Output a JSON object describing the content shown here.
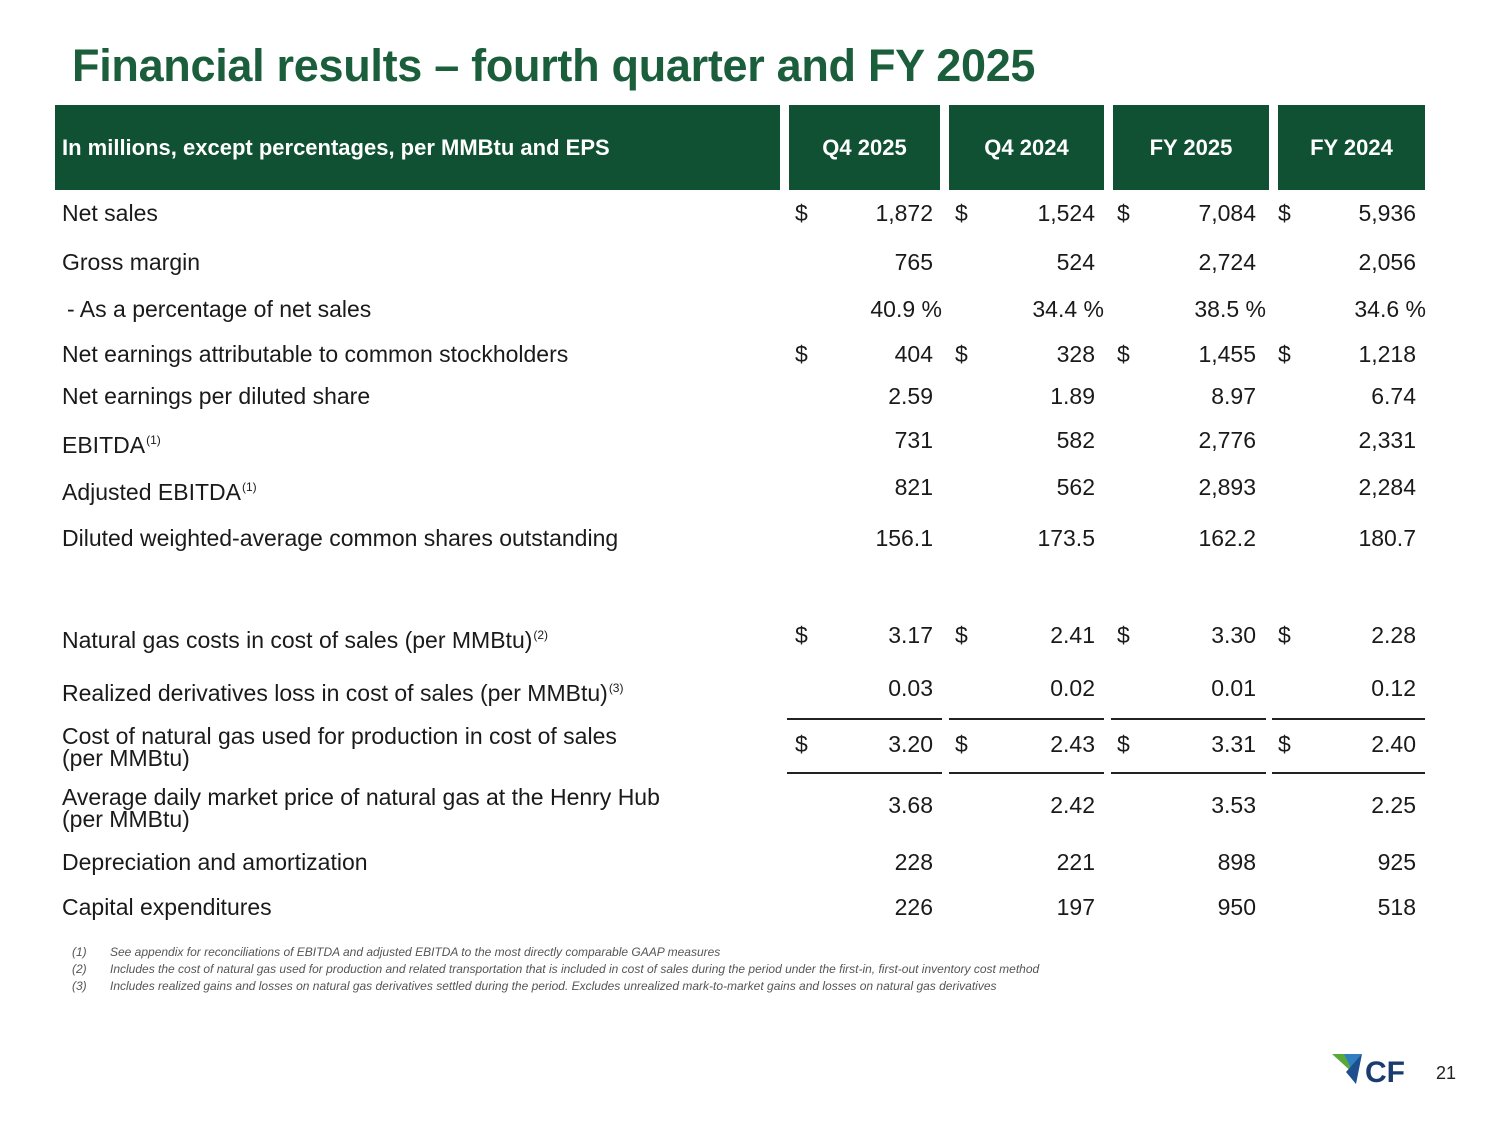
{
  "title": "Financial results – fourth quarter and FY 2025",
  "table": {
    "columns": [
      "In millions, except percentages, per MMBtu and EPS",
      "Q4 2025",
      "Q4 2024",
      "FY 2025",
      "FY 2024"
    ],
    "rows": [
      {
        "label": "Net sales",
        "sup": "",
        "dollar": true,
        "values": [
          "1,872",
          "1,524",
          "7,084",
          "5,936"
        ]
      },
      {
        "label": "Gross margin",
        "sup": "",
        "dollar": false,
        "values": [
          "765",
          "524",
          "2,724",
          "2,056"
        ]
      },
      {
        "label": "- As a percentage of net sales",
        "sup": "",
        "dollar": false,
        "values": [
          "40.9 %",
          "34.4 %",
          "38.5 %",
          "34.6 %"
        ]
      },
      {
        "label": "Net earnings attributable to common stockholders",
        "sup": "",
        "dollar": true,
        "values": [
          "404",
          "328",
          "1,455",
          "1,218"
        ]
      },
      {
        "label": "Net earnings per diluted share",
        "sup": "",
        "dollar": false,
        "values": [
          "2.59",
          "1.89",
          "8.97",
          "6.74"
        ]
      },
      {
        "label": "EBITDA",
        "sup": "(1)",
        "dollar": false,
        "values": [
          "731",
          "582",
          "2,776",
          "2,331"
        ]
      },
      {
        "label": "Adjusted EBITDA",
        "sup": "(1)",
        "dollar": false,
        "values": [
          "821",
          "562",
          "2,893",
          "2,284"
        ]
      },
      {
        "label": "Diluted weighted-average common shares outstanding",
        "sup": "",
        "dollar": false,
        "values": [
          "156.1",
          "173.5",
          "162.2",
          "180.7"
        ]
      },
      {
        "label": "Natural gas costs in cost of sales (per MMBtu)",
        "sup": "(2)",
        "dollar": true,
        "values": [
          "3.17",
          "2.41",
          "3.30",
          "2.28"
        ]
      },
      {
        "label": "Realized derivatives loss in cost of sales (per MMBtu)",
        "sup": "(3)",
        "dollar": false,
        "values": [
          "0.03",
          "0.02",
          "0.01",
          "0.12"
        ]
      },
      {
        "label": "Cost of natural gas used for production in cost of sales",
        "label2": "(per MMBtu)",
        "sup": "",
        "dollar": true,
        "values": [
          "3.20",
          "2.43",
          "3.31",
          "2.40"
        ]
      },
      {
        "label": "Average daily market price of natural gas at the Henry Hub",
        "label2": "(per MMBtu)",
        "sup": "",
        "dollar": false,
        "values": [
          "3.68",
          "2.42",
          "3.53",
          "2.25"
        ]
      },
      {
        "label": "Depreciation and amortization",
        "sup": "",
        "dollar": false,
        "values": [
          "228",
          "221",
          "898",
          "925"
        ]
      },
      {
        "label": "Capital expenditures",
        "sup": "",
        "dollar": false,
        "values": [
          "226",
          "197",
          "950",
          "518"
        ]
      }
    ]
  },
  "footnotes": [
    {
      "num": "(1)",
      "text": "See appendix for reconciliations of EBITDA and adjusted EBITDA to the most directly comparable GAAP measures"
    },
    {
      "num": "(2)",
      "text": "Includes the cost of natural gas used for production and related transportation that is included in cost of sales during the period under the first-in, first-out inventory cost method"
    },
    {
      "num": "(3)",
      "text": "Includes realized gains and losses on natural gas derivatives settled during the period. Excludes unrealized mark-to-market gains and losses on natural gas derivatives"
    }
  ],
  "logo": {
    "text": "CF",
    "colors": {
      "green": "#5aa83a",
      "blue": "#1d4f8f",
      "navy": "#1a3b6e"
    }
  },
  "page_number": "21"
}
